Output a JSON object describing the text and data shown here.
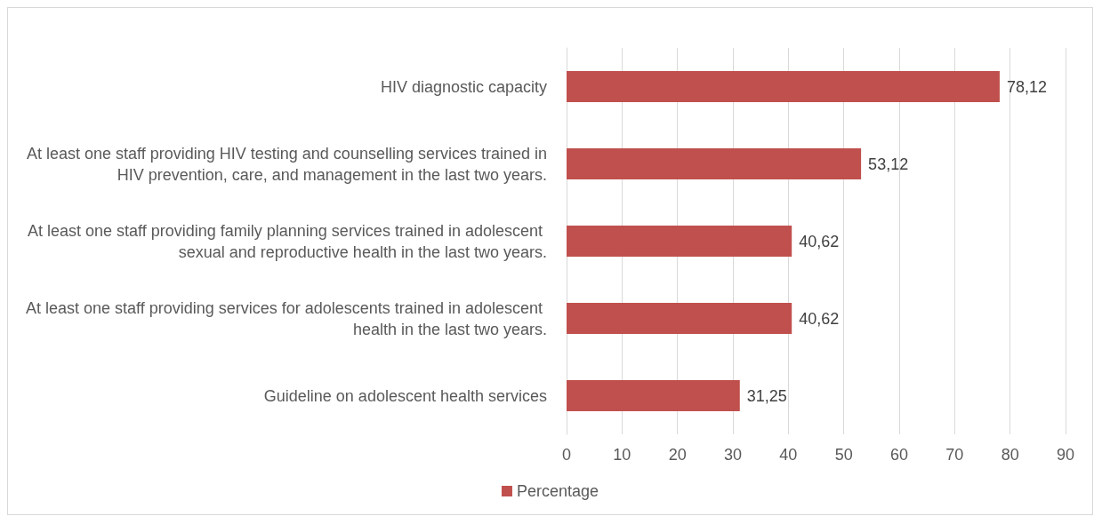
{
  "chart_data": {
    "type": "bar",
    "orientation": "horizontal",
    "categories": [
      "HIV diagnostic capacity",
      "At least one staff providing HIV testing and counselling services trained in HIV prevention, care, and management in the last two years.",
      "At least one staff providing family planning services trained in adolescent sexual and reproductive health in the last two years.",
      "At least one staff providing services for adolescents trained in adolescent health in the last two years.",
      "Guideline on adolescent health services"
    ],
    "series": [
      {
        "name": "Percentage",
        "color": "#c0504d",
        "values": [
          78.12,
          53.12,
          40.62,
          40.62,
          31.25
        ],
        "value_labels": [
          "78,12",
          "53,12",
          "40,62",
          "40,62",
          "31,25"
        ]
      }
    ],
    "xlim": [
      0,
      90
    ],
    "xticks": [
      0,
      10,
      20,
      30,
      40,
      50,
      60,
      70,
      80,
      90
    ],
    "grid": "x",
    "legend": "bottom"
  }
}
